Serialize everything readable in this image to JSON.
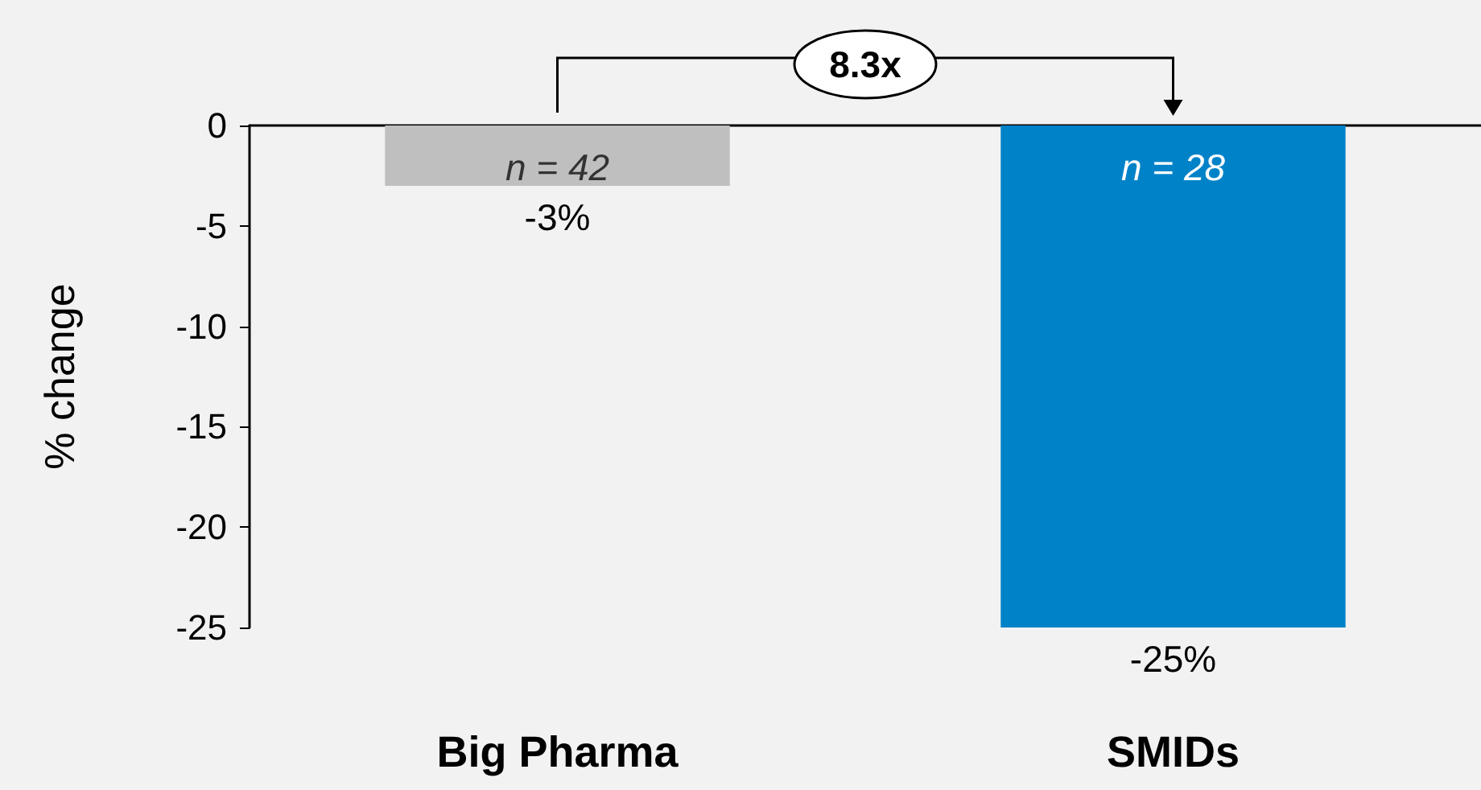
{
  "chart_data": {
    "type": "bar",
    "ylabel": "% change",
    "categories": [
      "Big Pharma",
      "SMIDs"
    ],
    "values": [
      -3,
      -25
    ],
    "colors": [
      "#bfbfbf",
      "#0082c8"
    ],
    "value_labels": [
      "-3%",
      "-25%"
    ],
    "ylim": [
      -25,
      0
    ],
    "yticks": [
      -25,
      -20,
      -15,
      -10,
      -5,
      0
    ],
    "annotations": [
      "n = 42",
      "n = 28",
      "8.3x"
    ]
  }
}
